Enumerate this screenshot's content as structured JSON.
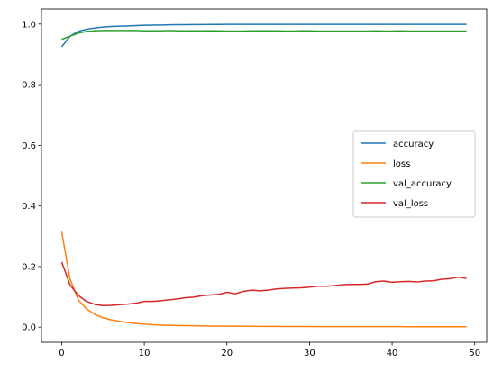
{
  "chart_data": {
    "type": "line",
    "title": "",
    "xlabel": "",
    "ylabel": "",
    "xlim": [
      -2.45,
      51.45
    ],
    "ylim": [
      -0.05,
      1.05
    ],
    "xticks": [
      0,
      10,
      20,
      30,
      40,
      50
    ],
    "xtick_labels": [
      "0",
      "10",
      "20",
      "30",
      "40",
      "50"
    ],
    "yticks": [
      0.0,
      0.2,
      0.4,
      0.6,
      0.8,
      1.0
    ],
    "ytick_labels": [
      "0.0",
      "0.2",
      "0.4",
      "0.6",
      "0.8",
      "1.0"
    ],
    "grid": false,
    "legend_position": "center-right",
    "x": [
      0,
      1,
      2,
      3,
      4,
      5,
      6,
      7,
      8,
      9,
      10,
      11,
      12,
      13,
      14,
      15,
      16,
      17,
      18,
      19,
      20,
      21,
      22,
      23,
      24,
      25,
      26,
      27,
      28,
      29,
      30,
      31,
      32,
      33,
      34,
      35,
      36,
      37,
      38,
      39,
      40,
      41,
      42,
      43,
      44,
      45,
      46,
      47,
      48,
      49
    ],
    "series": [
      {
        "name": "accuracy",
        "color": "#1f77b4",
        "values": [
          0.925,
          0.96,
          0.976,
          0.983,
          0.987,
          0.99,
          0.992,
          0.993,
          0.994,
          0.995,
          0.996,
          0.9965,
          0.997,
          0.9975,
          0.998,
          0.998,
          0.9983,
          0.9985,
          0.9987,
          0.9988,
          0.999,
          0.999,
          0.999,
          0.999,
          0.999,
          0.999,
          0.999,
          0.999,
          0.999,
          0.999,
          0.999,
          0.999,
          0.999,
          0.999,
          0.999,
          0.999,
          0.999,
          0.999,
          0.999,
          0.999,
          0.999,
          0.999,
          0.999,
          0.999,
          0.999,
          0.999,
          0.999,
          0.999,
          0.999,
          0.999
        ]
      },
      {
        "name": "loss",
        "color": "#ff7f0e",
        "values": [
          0.315,
          0.16,
          0.09,
          0.06,
          0.042,
          0.031,
          0.024,
          0.019,
          0.015,
          0.012,
          0.01,
          0.008,
          0.007,
          0.006,
          0.0055,
          0.005,
          0.0045,
          0.004,
          0.0037,
          0.0034,
          0.0031,
          0.003,
          0.0028,
          0.0026,
          0.0025,
          0.0024,
          0.0023,
          0.0022,
          0.0021,
          0.002,
          0.0019,
          0.0018,
          0.0018,
          0.0017,
          0.0017,
          0.0016,
          0.0016,
          0.0015,
          0.0015,
          0.0015,
          0.0016,
          0.0015,
          0.0014,
          0.0014,
          0.0013,
          0.0013,
          0.0012,
          0.0012,
          0.0012,
          0.0012
        ]
      },
      {
        "name": "val_accuracy",
        "color": "#2ca02c",
        "values": [
          0.95,
          0.96,
          0.97,
          0.976,
          0.978,
          0.979,
          0.979,
          0.979,
          0.979,
          0.979,
          0.978,
          0.978,
          0.978,
          0.979,
          0.978,
          0.978,
          0.978,
          0.978,
          0.978,
          0.978,
          0.977,
          0.977,
          0.977,
          0.978,
          0.978,
          0.978,
          0.978,
          0.977,
          0.977,
          0.978,
          0.978,
          0.977,
          0.977,
          0.977,
          0.977,
          0.977,
          0.977,
          0.977,
          0.978,
          0.977,
          0.977,
          0.978,
          0.977,
          0.977,
          0.977,
          0.977,
          0.977,
          0.977,
          0.977,
          0.977
        ]
      },
      {
        "name": "val_loss",
        "color": "#d62728",
        "values": [
          0.215,
          0.14,
          0.105,
          0.085,
          0.075,
          0.071,
          0.072,
          0.074,
          0.076,
          0.079,
          0.085,
          0.085,
          0.087,
          0.09,
          0.093,
          0.097,
          0.099,
          0.104,
          0.106,
          0.108,
          0.115,
          0.11,
          0.118,
          0.122,
          0.12,
          0.122,
          0.126,
          0.128,
          0.129,
          0.13,
          0.132,
          0.135,
          0.135,
          0.137,
          0.14,
          0.141,
          0.141,
          0.142,
          0.15,
          0.152,
          0.148,
          0.15,
          0.151,
          0.149,
          0.152,
          0.153,
          0.158,
          0.16,
          0.165,
          0.161
        ]
      }
    ]
  }
}
